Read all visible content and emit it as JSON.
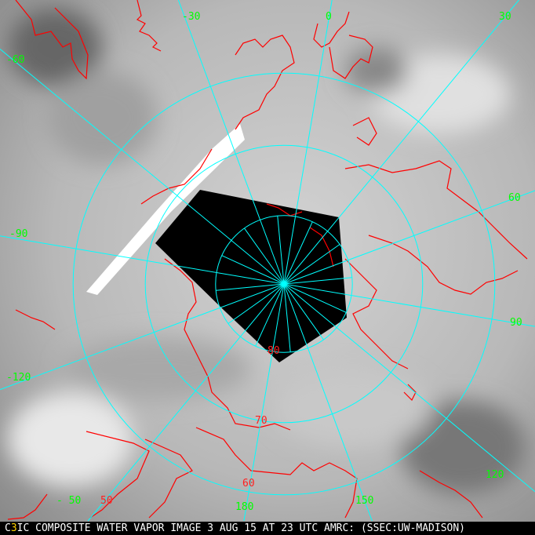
{
  "image": {
    "type": "polar stereographic water vapor composite",
    "colors": {
      "graticule": "#00ffff",
      "coastline": "#ff0000",
      "lon_label": "#00ff00",
      "lat_label": "#ff2020",
      "no_data": "#000000",
      "caption_text": "#ffffff",
      "caption_marker": "#ffd400"
    }
  },
  "longitude_labels": [
    "-30",
    "0",
    "30",
    "-60",
    "60",
    "-90",
    "90",
    "-120",
    "120",
    "150",
    "180",
    "- 50"
  ],
  "latitude_labels": [
    "80",
    "70",
    "60",
    "50"
  ],
  "caption": {
    "prefix": "C",
    "marker": "3",
    "text": "IC COMPOSITE WATER VAPOR IMAGE 3 AUG 15 AT 23 UTC AMRC: (SSEC:UW-MADISON)"
  }
}
